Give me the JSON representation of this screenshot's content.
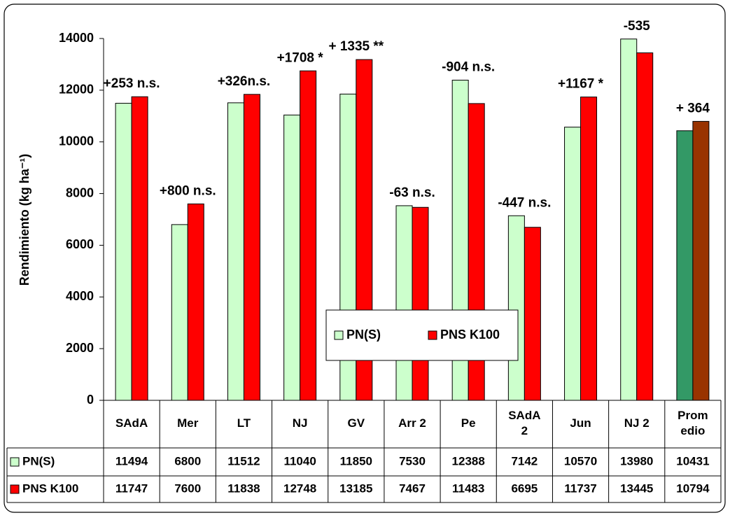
{
  "chart_data": {
    "type": "bar",
    "y_label": "Rendimiento (kg ha⁻¹)",
    "categories": [
      "SAdA",
      "Mer",
      "LT",
      "NJ",
      "GV",
      "Arr 2",
      "Pe",
      "SAdA 2",
      "Jun",
      "NJ 2",
      "Promedio"
    ],
    "series": [
      {
        "name": "PN(S)",
        "color": "#ccffcc",
        "colors": [
          "#ccffcc",
          "#ccffcc",
          "#ccffcc",
          "#ccffcc",
          "#ccffcc",
          "#ccffcc",
          "#ccffcc",
          "#ccffcc",
          "#ccffcc",
          "#ccffcc",
          "#339966"
        ],
        "values": [
          11494,
          6800,
          11512,
          11040,
          11850,
          7530,
          12388,
          7142,
          10570,
          13980,
          10431
        ]
      },
      {
        "name": "PNS K100",
        "color": "#ff0000",
        "colors": [
          "#ff0000",
          "#ff0000",
          "#ff0000",
          "#ff0000",
          "#ff0000",
          "#ff0000",
          "#ff0000",
          "#ff0000",
          "#ff0000",
          "#ff0000",
          "#993300"
        ],
        "values": [
          11747,
          7600,
          11838,
          12748,
          13185,
          7467,
          11483,
          6695,
          11737,
          13445,
          10794
        ]
      }
    ],
    "annotations": [
      "+253 n.s.",
      "+800 n.s.",
      "+326n.s.",
      "+1708 *",
      "+ 1335 **",
      "-63 n.s.",
      "-904 n.s.",
      "-447 n.s.",
      "+1167 *",
      "-535",
      "+ 364"
    ],
    "ylim": [
      0,
      14000
    ],
    "yticks": [
      0,
      2000,
      4000,
      6000,
      8000,
      10000,
      12000,
      14000
    ],
    "grid": false,
    "legend": "center",
    "data_table": true
  }
}
